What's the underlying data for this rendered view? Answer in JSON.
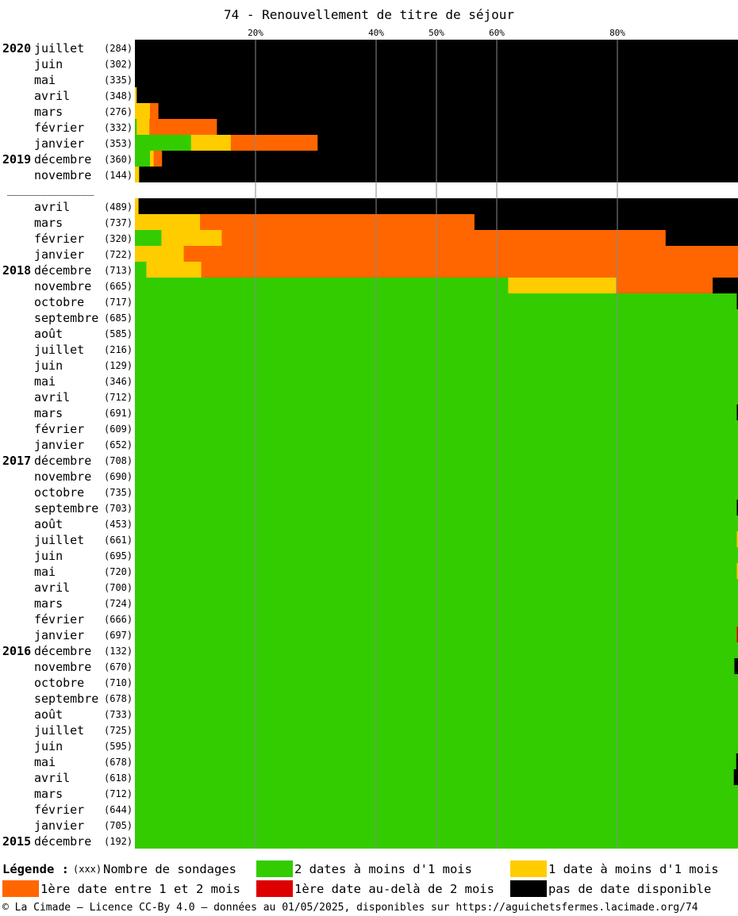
{
  "title": "74 - Renouvellement de titre de séjour",
  "chart_data": {
    "type": "bar",
    "orientation": "horizontal",
    "stacked": true,
    "title": "74 - Renouvellement de titre de séjour",
    "x_ticks": [
      "20%",
      "40%",
      "50%",
      "60%",
      "80%"
    ],
    "x_tick_values": [
      20,
      40,
      50,
      60,
      80
    ],
    "xlim": [
      0,
      100
    ],
    "grid": true,
    "series": [
      {
        "name": "2 dates à moins d'1 mois",
        "color": "#33cc00"
      },
      {
        "name": "1 date à moins d'1 mois",
        "color": "#ffcc00"
      },
      {
        "name": "1ère date entre 1 et 2 mois",
        "color": "#ff6600"
      },
      {
        "name": "1ère date au-delà de 2 mois",
        "color": "#dd0000"
      },
      {
        "name": "pas de date disponible",
        "color": "#000000"
      }
    ],
    "separator_label": "_____________",
    "rows": [
      {
        "year": "2020",
        "month": "juillet",
        "count": "(284)",
        "v": [
          0,
          0,
          0,
          0,
          100
        ]
      },
      {
        "year": "",
        "month": "juin",
        "count": "(302)",
        "v": [
          0,
          0,
          0,
          0,
          100
        ]
      },
      {
        "year": "",
        "month": "mai",
        "count": "(335)",
        "v": [
          0,
          0,
          0,
          0,
          100
        ]
      },
      {
        "year": "",
        "month": "avril",
        "count": "(348)",
        "v": [
          0,
          0.3,
          0,
          0,
          99.7
        ]
      },
      {
        "year": "",
        "month": "mars",
        "count": "(276)",
        "v": [
          0,
          2.5,
          1.4,
          0,
          96.1
        ]
      },
      {
        "year": "",
        "month": "février",
        "count": "(332)",
        "v": [
          0.3,
          2.1,
          11.2,
          0,
          86.4
        ]
      },
      {
        "year": "",
        "month": "janvier",
        "count": "(353)",
        "v": [
          9.3,
          6.6,
          14.4,
          0,
          69.7
        ]
      },
      {
        "year": "2019",
        "month": "décembre",
        "count": "(360)",
        "v": [
          2.5,
          0.6,
          1.4,
          0,
          95.5
        ]
      },
      {
        "year": "",
        "month": "novembre",
        "count": "(144)",
        "v": [
          0,
          0.7,
          0,
          0,
          99.3
        ]
      },
      {
        "separator": true
      },
      {
        "year": "",
        "month": "avril",
        "count": "(489)",
        "v": [
          0,
          0.6,
          0,
          0,
          99.4
        ]
      },
      {
        "year": "",
        "month": "mars",
        "count": "(737)",
        "v": [
          0,
          10.8,
          45.5,
          0,
          43.7
        ]
      },
      {
        "year": "",
        "month": "février",
        "count": "(320)",
        "v": [
          4.4,
          10.0,
          73.6,
          0,
          12.0
        ]
      },
      {
        "year": "",
        "month": "janvier",
        "count": "(722)",
        "v": [
          0,
          8.1,
          91.9,
          0,
          0
        ]
      },
      {
        "year": "2018",
        "month": "décembre",
        "count": "(713)",
        "v": [
          1.9,
          9.1,
          89.0,
          0,
          0
        ]
      },
      {
        "year": "",
        "month": "novembre",
        "count": "(665)",
        "v": [
          61.9,
          17.9,
          16.0,
          0,
          4.2
        ]
      },
      {
        "year": "",
        "month": "octobre",
        "count": "(717)",
        "v": [
          99.8,
          0,
          0,
          0,
          0.2
        ]
      },
      {
        "year": "",
        "month": "septembre",
        "count": "(685)",
        "v": [
          100,
          0,
          0,
          0,
          0
        ]
      },
      {
        "year": "",
        "month": "août",
        "count": "(585)",
        "v": [
          100,
          0,
          0,
          0,
          0
        ]
      },
      {
        "year": "",
        "month": "juillet",
        "count": "(216)",
        "v": [
          100,
          0,
          0,
          0,
          0
        ]
      },
      {
        "year": "",
        "month": "juin",
        "count": "(129)",
        "v": [
          100,
          0,
          0,
          0,
          0
        ]
      },
      {
        "year": "",
        "month": "mai",
        "count": "(346)",
        "v": [
          100,
          0,
          0,
          0,
          0
        ]
      },
      {
        "year": "",
        "month": "avril",
        "count": "(712)",
        "v": [
          100,
          0,
          0,
          0,
          0
        ]
      },
      {
        "year": "",
        "month": "mars",
        "count": "(691)",
        "v": [
          99.8,
          0,
          0,
          0,
          0.2
        ]
      },
      {
        "year": "",
        "month": "février",
        "count": "(609)",
        "v": [
          100,
          0,
          0,
          0,
          0
        ]
      },
      {
        "year": "",
        "month": "janvier",
        "count": "(652)",
        "v": [
          100,
          0,
          0,
          0,
          0
        ]
      },
      {
        "year": "2017",
        "month": "décembre",
        "count": "(708)",
        "v": [
          100,
          0,
          0,
          0,
          0
        ]
      },
      {
        "year": "",
        "month": "novembre",
        "count": "(690)",
        "v": [
          100,
          0,
          0,
          0,
          0
        ]
      },
      {
        "year": "",
        "month": "octobre",
        "count": "(735)",
        "v": [
          100,
          0,
          0,
          0,
          0
        ]
      },
      {
        "year": "",
        "month": "septembre",
        "count": "(703)",
        "v": [
          99.8,
          0,
          0,
          0,
          0.2
        ]
      },
      {
        "year": "",
        "month": "août",
        "count": "(453)",
        "v": [
          100,
          0,
          0,
          0,
          0
        ]
      },
      {
        "year": "",
        "month": "juillet",
        "count": "(661)",
        "v": [
          99.8,
          0.2,
          0,
          0,
          0
        ]
      },
      {
        "year": "",
        "month": "juin",
        "count": "(695)",
        "v": [
          100,
          0,
          0,
          0,
          0
        ]
      },
      {
        "year": "",
        "month": "mai",
        "count": "(720)",
        "v": [
          99.8,
          0.2,
          0,
          0,
          0
        ]
      },
      {
        "year": "",
        "month": "avril",
        "count": "(700)",
        "v": [
          100,
          0,
          0,
          0,
          0
        ]
      },
      {
        "year": "",
        "month": "mars",
        "count": "(724)",
        "v": [
          100,
          0,
          0,
          0,
          0
        ]
      },
      {
        "year": "",
        "month": "février",
        "count": "(666)",
        "v": [
          100,
          0,
          0,
          0,
          0
        ]
      },
      {
        "year": "",
        "month": "janvier",
        "count": "(697)",
        "v": [
          99.8,
          0,
          0,
          0.2,
          0
        ]
      },
      {
        "year": "2016",
        "month": "décembre",
        "count": "(132)",
        "v": [
          100,
          0,
          0,
          0,
          0
        ]
      },
      {
        "year": "",
        "month": "novembre",
        "count": "(670)",
        "v": [
          99.4,
          0,
          0,
          0,
          0.6
        ]
      },
      {
        "year": "",
        "month": "octobre",
        "count": "(710)",
        "v": [
          100,
          0,
          0,
          0,
          0
        ]
      },
      {
        "year": "",
        "month": "septembre",
        "count": "(678)",
        "v": [
          100,
          0,
          0,
          0,
          0
        ]
      },
      {
        "year": "",
        "month": "août",
        "count": "(733)",
        "v": [
          100,
          0,
          0,
          0,
          0
        ]
      },
      {
        "year": "",
        "month": "juillet",
        "count": "(725)",
        "v": [
          100,
          0,
          0,
          0,
          0
        ]
      },
      {
        "year": "",
        "month": "juin",
        "count": "(595)",
        "v": [
          100,
          0,
          0,
          0,
          0
        ]
      },
      {
        "year": "",
        "month": "mai",
        "count": "(678)",
        "v": [
          99.7,
          0,
          0,
          0,
          0.3
        ]
      },
      {
        "year": "",
        "month": "avril",
        "count": "(618)",
        "v": [
          99.3,
          0,
          0,
          0,
          0.7
        ]
      },
      {
        "year": "",
        "month": "mars",
        "count": "(712)",
        "v": [
          100,
          0,
          0,
          0,
          0
        ]
      },
      {
        "year": "",
        "month": "février",
        "count": "(644)",
        "v": [
          100,
          0,
          0,
          0,
          0
        ]
      },
      {
        "year": "",
        "month": "janvier",
        "count": "(705)",
        "v": [
          100,
          0,
          0,
          0,
          0
        ]
      },
      {
        "year": "2015",
        "month": "décembre",
        "count": "(192)",
        "v": [
          100,
          0,
          0,
          0,
          0
        ]
      }
    ]
  },
  "legend": {
    "label": "Légende :",
    "count_key": "(xxx)",
    "count_label": "Nombre de sondages",
    "items": [
      {
        "label": "2 dates à moins d'1 mois",
        "color": "#33cc00"
      },
      {
        "label": "1 date à moins d'1 mois",
        "color": "#ffcc00"
      },
      {
        "label": "1ère date entre 1 et 2 mois",
        "color": "#ff6600"
      },
      {
        "label": "1ère date au-delà de 2 mois",
        "color": "#dd0000"
      },
      {
        "label": "pas de date disponible",
        "color": "#000000"
      }
    ]
  },
  "footer": "© La Cimade – Licence CC-By 4.0 – données au 01/05/2025, disponibles sur https://aguichetsfermes.lacimade.org/74"
}
